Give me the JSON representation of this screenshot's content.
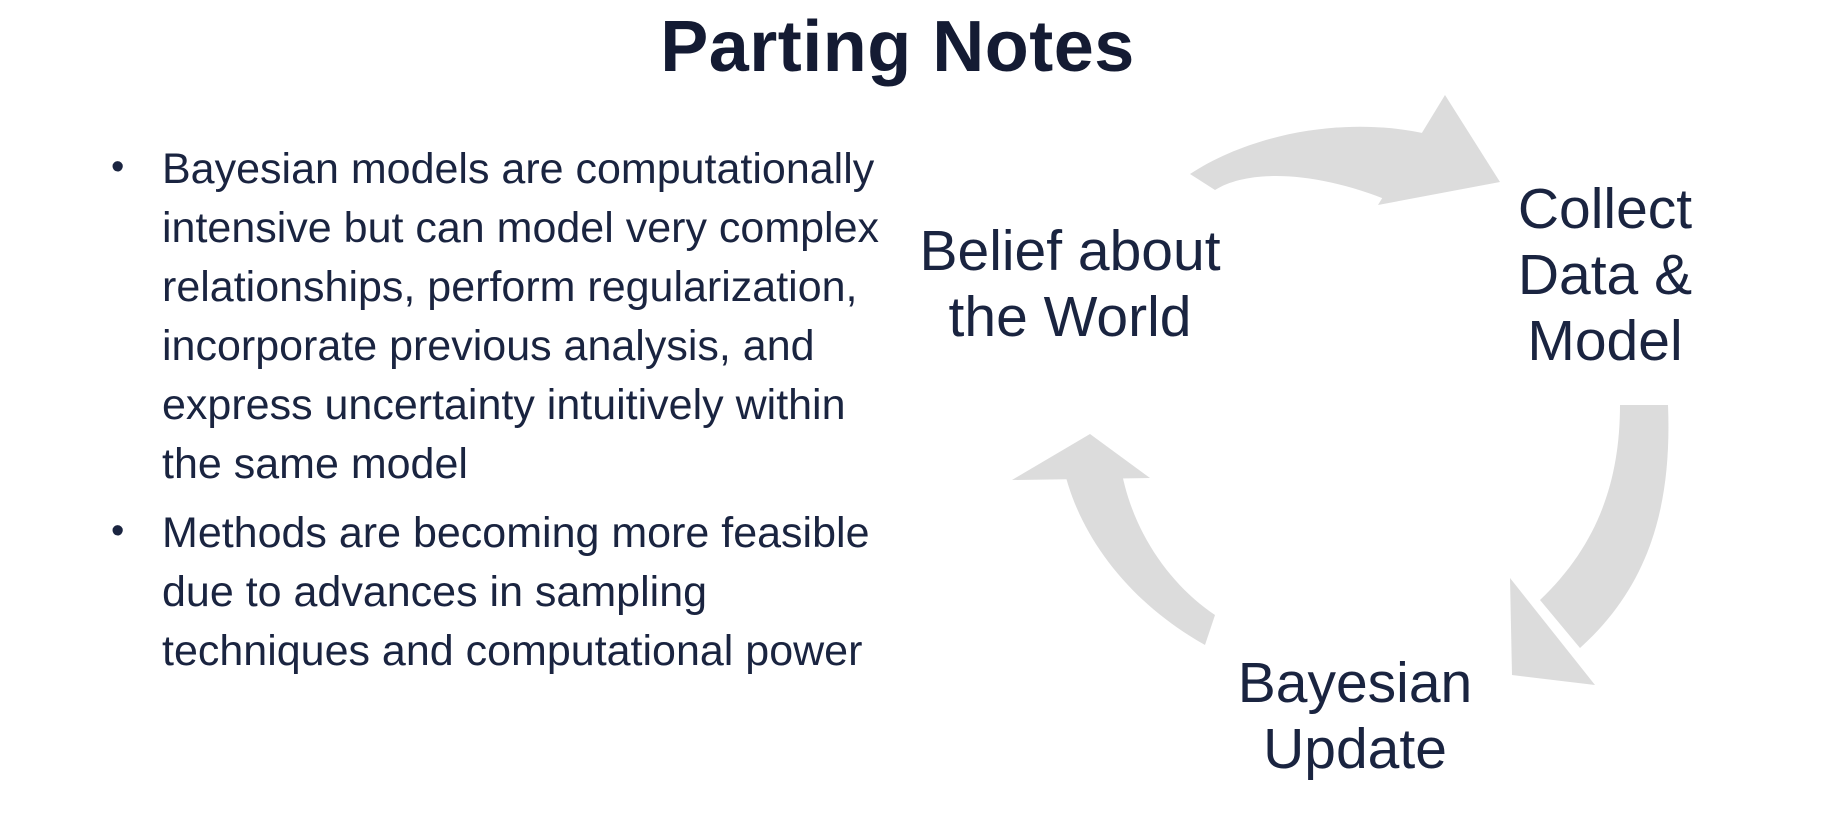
{
  "slide": {
    "title": "Parting Notes",
    "bullets": [
      {
        "marker": "•",
        "text": "Bayesian models are computationally intensive but can model very complex relationships, perform regularization, incorporate previous analysis, and express uncertainty intuitively within the same model"
      },
      {
        "marker": "•",
        "text": "Methods are becoming more feasible due to advances in sampling techniques and computational power"
      }
    ]
  },
  "cycle_diagram": {
    "arrow_color": "#dcdcdc",
    "text_color": "#1a2440",
    "nodes": [
      {
        "label": "Belief about\nthe World"
      },
      {
        "label": "Collect\nData &\nModel"
      },
      {
        "label": "Bayesian\nUpdate"
      }
    ]
  }
}
